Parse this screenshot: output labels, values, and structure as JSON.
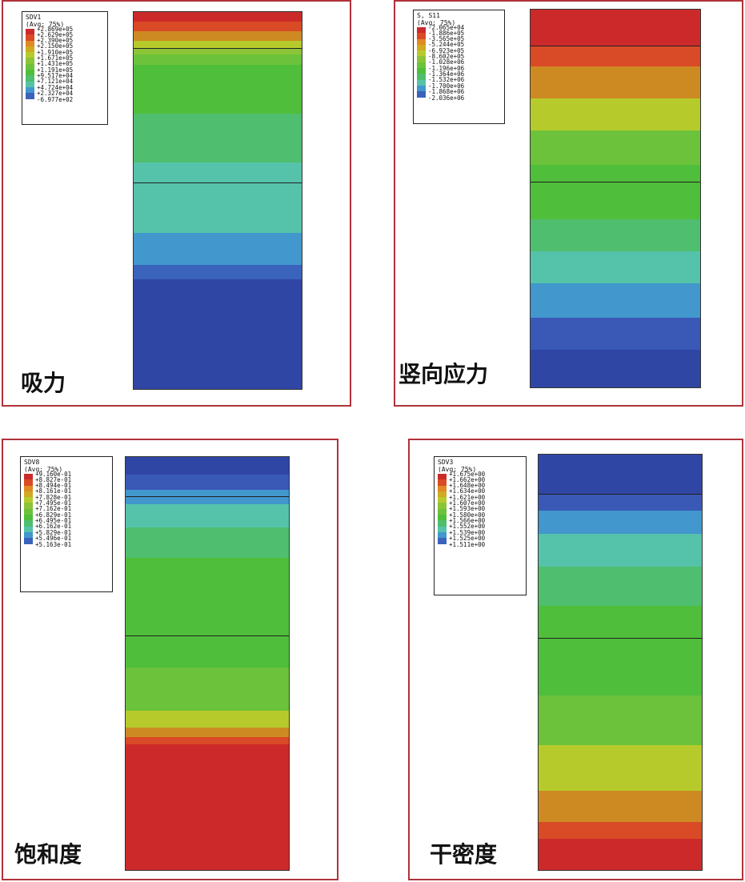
{
  "panels": [
    {
      "caption": "吸力",
      "legend": {
        "variable": "SDV1",
        "averaging": "(Avg: 75%)",
        "values": [
          "+2.869e+05",
          "+2.629e+05",
          "+2.390e+05",
          "+2.150e+05",
          "+1.910e+05",
          "+1.671e+05",
          "+1.431e+05",
          "+1.191e+05",
          "+9.517e+04",
          "+7.121e+04",
          "+4.724e+04",
          "+2.327e+04",
          "-6.977e+02"
        ]
      },
      "bands": [
        {
          "top": 0,
          "bottom": 2.6,
          "color": "#cc2a2a"
        },
        {
          "top": 2.6,
          "bottom": 5.0,
          "color": "#d94a26"
        },
        {
          "top": 5.0,
          "bottom": 7.6,
          "color": "#ce8a22"
        },
        {
          "top": 7.6,
          "bottom": 9.8,
          "color": "#b6cb2b"
        },
        {
          "top": 9.8,
          "bottom": 11.2,
          "color": "#8cc437"
        },
        {
          "top": 11.2,
          "bottom": 14.0,
          "color": "#6cc23a"
        },
        {
          "top": 14.0,
          "bottom": 27.0,
          "color": "#4fbe3b"
        },
        {
          "top": 27.0,
          "bottom": 40.0,
          "color": "#4fbe6e"
        },
        {
          "top": 40.0,
          "bottom": 45.0,
          "color": "#55c3aa"
        },
        {
          "top": 45.0,
          "bottom": 58.5,
          "color": "#55c3aa"
        },
        {
          "top": 58.5,
          "bottom": 67.0,
          "color": "#4297cc"
        },
        {
          "top": 67.0,
          "bottom": 71.0,
          "color": "#3a63bb"
        },
        {
          "top": 71.0,
          "bottom": 100,
          "color": "#3046a4"
        }
      ],
      "lines": [
        9.6,
        45.2
      ]
    },
    {
      "caption": "竖向应力",
      "legend": {
        "variable": "S, S11",
        "averaging": "(Avg: 75%)",
        "values": [
          "-2.065e+04",
          "-1.886e+05",
          "-3.565e+05",
          "-5.244e+05",
          "-6.923e+05",
          "-8.602e+05",
          "-1.028e+06",
          "-1.196e+06",
          "-1.364e+06",
          "-1.532e+06",
          "-1.700e+06",
          "-1.868e+06",
          "-2.036e+06"
        ]
      },
      "bands": [
        {
          "top": 0,
          "bottom": 9.6,
          "color": "#cc2a2a"
        },
        {
          "top": 9.6,
          "bottom": 15.0,
          "color": "#d94a26"
        },
        {
          "top": 15.0,
          "bottom": 23.5,
          "color": "#ce8a22"
        },
        {
          "top": 23.5,
          "bottom": 32.0,
          "color": "#b6cb2b"
        },
        {
          "top": 32.0,
          "bottom": 41.0,
          "color": "#6cc23a"
        },
        {
          "top": 41.0,
          "bottom": 55.5,
          "color": "#4fbe3b"
        },
        {
          "top": 55.5,
          "bottom": 64.0,
          "color": "#4fbe6e"
        },
        {
          "top": 64.0,
          "bottom": 72.5,
          "color": "#55c3aa"
        },
        {
          "top": 72.5,
          "bottom": 81.5,
          "color": "#4297cc"
        },
        {
          "top": 81.5,
          "bottom": 90.0,
          "color": "#3a58b5"
        },
        {
          "top": 90.0,
          "bottom": 100,
          "color": "#3046a4"
        }
      ],
      "lines": [
        9.6,
        45.5
      ]
    },
    {
      "caption": "饱和度",
      "legend": {
        "variable": "SDV8",
        "averaging": "(Avg: 75%)",
        "values": [
          "+9.160e-01",
          "+8.827e-01",
          "+8.494e-01",
          "+8.161e-01",
          "+7.828e-01",
          "+7.495e-01",
          "+7.162e-01",
          "+6.829e-01",
          "+6.495e-01",
          "+6.162e-01",
          "+5.829e-01",
          "+5.496e-01",
          "+5.163e-01"
        ]
      },
      "bands": [
        {
          "top": 0,
          "bottom": 4.2,
          "color": "#3046a4"
        },
        {
          "top": 4.2,
          "bottom": 8.0,
          "color": "#3a58b5"
        },
        {
          "top": 8.0,
          "bottom": 11.5,
          "color": "#4297cc"
        },
        {
          "top": 11.5,
          "bottom": 17.0,
          "color": "#55c3aa"
        },
        {
          "top": 17.0,
          "bottom": 24.5,
          "color": "#4fbe6e"
        },
        {
          "top": 24.5,
          "bottom": 51.0,
          "color": "#4fbe3b"
        },
        {
          "top": 51.0,
          "bottom": 61.5,
          "color": "#6cc23a"
        },
        {
          "top": 61.5,
          "bottom": 65.5,
          "color": "#b6cb2b"
        },
        {
          "top": 65.5,
          "bottom": 67.8,
          "color": "#ce8a22"
        },
        {
          "top": 67.8,
          "bottom": 69.5,
          "color": "#d94a26"
        },
        {
          "top": 69.5,
          "bottom": 100,
          "color": "#cc2a2a"
        }
      ],
      "lines": [
        9.4,
        43.2
      ]
    },
    {
      "caption": "干密度",
      "legend": {
        "variable": "SDV3",
        "averaging": "(Avg: 75%)",
        "values": [
          "+1.675e+00",
          "+1.662e+00",
          "+1.648e+00",
          "+1.634e+00",
          "+1.621e+00",
          "+1.607e+00",
          "+1.593e+00",
          "+1.580e+00",
          "+1.566e+00",
          "+1.552e+00",
          "+1.539e+00",
          "+1.525e+00",
          "+1.511e+00"
        ]
      },
      "bands": [
        {
          "top": 0,
          "bottom": 9.4,
          "color": "#3046a4"
        },
        {
          "top": 9.4,
          "bottom": 13.5,
          "color": "#3a58b5"
        },
        {
          "top": 13.5,
          "bottom": 19.0,
          "color": "#4297cc"
        },
        {
          "top": 19.0,
          "bottom": 27.0,
          "color": "#55c3aa"
        },
        {
          "top": 27.0,
          "bottom": 36.5,
          "color": "#4fbe6e"
        },
        {
          "top": 36.5,
          "bottom": 58.0,
          "color": "#4fbe3b"
        },
        {
          "top": 58.0,
          "bottom": 70.0,
          "color": "#6cc23a"
        },
        {
          "top": 70.0,
          "bottom": 81.0,
          "color": "#b6cb2b"
        },
        {
          "top": 81.0,
          "bottom": 88.5,
          "color": "#ce8a22"
        },
        {
          "top": 88.5,
          "bottom": 92.5,
          "color": "#d94a26"
        },
        {
          "top": 92.5,
          "bottom": 100,
          "color": "#cc2a2a"
        }
      ],
      "lines": [
        9.4,
        44.2
      ]
    }
  ],
  "legend_colors": [
    "#cc2a2a",
    "#d94a26",
    "#e08a24",
    "#cfaa22",
    "#b6cb2b",
    "#8cc437",
    "#6cc23a",
    "#4fbe3b",
    "#4fbe6e",
    "#55c3aa",
    "#4297cc",
    "#3a63bb",
    "#3046a4"
  ]
}
